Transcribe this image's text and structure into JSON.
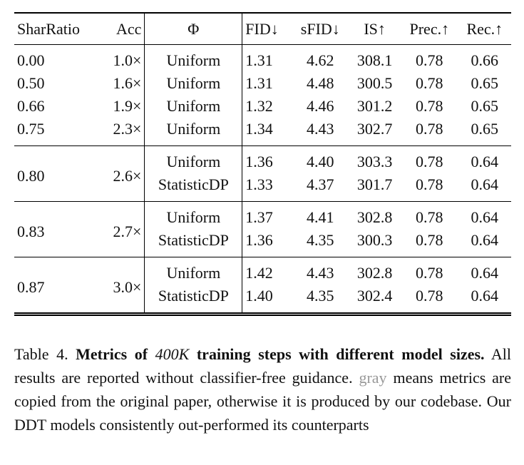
{
  "table": {
    "headers": [
      "SharRatio",
      "Acc",
      "Φ",
      "FID↓",
      "sFID↓",
      "IS↑",
      "Prec.↑",
      "Rec.↑"
    ],
    "groups": [
      {
        "rows": [
          [
            "0.00",
            "1.0×",
            "Uniform",
            "1.31",
            "4.62",
            "308.1",
            "0.78",
            "0.66"
          ],
          [
            "0.50",
            "1.6×",
            "Uniform",
            "1.31",
            "4.48",
            "300.5",
            "0.78",
            "0.65"
          ],
          [
            "0.66",
            "1.9×",
            "Uniform",
            "1.32",
            "4.46",
            "301.2",
            "0.78",
            "0.65"
          ],
          [
            "0.75",
            "2.3×",
            "Uniform",
            "1.34",
            "4.43",
            "302.7",
            "0.78",
            "0.65"
          ]
        ]
      },
      {
        "shar": "0.80",
        "acc": "2.6×",
        "rows": [
          [
            "Uniform",
            "1.36",
            "4.40",
            "303.3",
            "0.78",
            "0.64"
          ],
          [
            "StatisticDP",
            "1.33",
            "4.37",
            "301.7",
            "0.78",
            "0.64"
          ]
        ]
      },
      {
        "shar": "0.83",
        "acc": "2.7×",
        "rows": [
          [
            "Uniform",
            "1.37",
            "4.41",
            "302.8",
            "0.78",
            "0.64"
          ],
          [
            "StatisticDP",
            "1.36",
            "4.35",
            "300.3",
            "0.78",
            "0.64"
          ]
        ]
      },
      {
        "shar": "0.87",
        "acc": "3.0×",
        "rows": [
          [
            "Uniform",
            "1.42",
            "4.43",
            "302.8",
            "0.78",
            "0.64"
          ],
          [
            "StatisticDP",
            "1.40",
            "4.35",
            "302.4",
            "0.78",
            "0.64"
          ]
        ]
      }
    ]
  },
  "caption": {
    "label": "Table 4.",
    "bold_a": "Metrics of",
    "math": "400K",
    "bold_b": "training steps with different model sizes.",
    "text_a": "All results are reported without classifier-free guidance.",
    "gray": "gray",
    "text_b": "means metrics are copied from the original paper, otherwise it is produced by our codebase. Our DDT models consistently out-performed its counterparts"
  }
}
